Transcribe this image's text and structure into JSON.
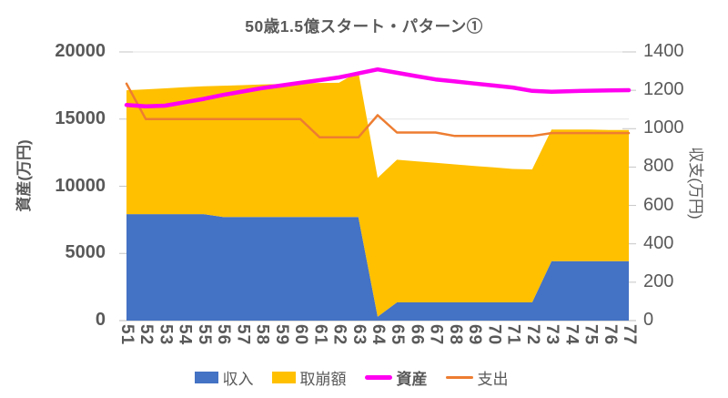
{
  "chart_data": {
    "type": "combo-stacked-area-line",
    "title": "50歳1.5億スタート・パターン①",
    "x": [
      51,
      52,
      53,
      54,
      55,
      56,
      57,
      58,
      59,
      60,
      61,
      62,
      63,
      64,
      65,
      66,
      67,
      68,
      69,
      70,
      71,
      72,
      73,
      74,
      75,
      76,
      77
    ],
    "left_axis": {
      "title": "資産(万円)",
      "min": 0,
      "max": 20000,
      "step": 5000
    },
    "right_axis": {
      "title": "収支(万円)",
      "min": 0,
      "max": 1400,
      "step": 200
    },
    "grid": {
      "show": true,
      "color": "#E3E3E3",
      "axis_color": "#C6C6C6"
    },
    "text_color": "#595959",
    "legend_position": "bottom",
    "series": [
      {
        "name": "収入",
        "type": "area",
        "stacked": true,
        "axis": "right",
        "color": "#4472C4",
        "legend_bold": false,
        "values": [
          555,
          555,
          555,
          555,
          555,
          540,
          540,
          540,
          540,
          540,
          540,
          540,
          540,
          20,
          95,
          95,
          95,
          95,
          95,
          95,
          95,
          95,
          310,
          310,
          310,
          310,
          310
        ]
      },
      {
        "name": "取崩額",
        "type": "area",
        "stacked": true,
        "axis": "right",
        "color": "#FFC000",
        "legend_bold": false,
        "values": [
          645,
          650,
          655,
          661,
          666,
          684,
          687,
          690,
          693,
          697,
          698,
          699,
          756,
          723,
          743,
          735,
          727,
          719,
          711,
          703,
          695,
          693,
          685,
          685,
          685,
          683,
          683
        ]
      },
      {
        "name": "資産",
        "type": "line",
        "axis": "left",
        "color": "#FF00F0",
        "stroke_width": 4.5,
        "legend_bold": true,
        "values": [
          16050,
          15950,
          16000,
          16250,
          16500,
          16800,
          17050,
          17300,
          17500,
          17700,
          17900,
          18100,
          18400,
          18700,
          18450,
          18200,
          17950,
          17800,
          17650,
          17500,
          17350,
          17100,
          17040,
          17080,
          17110,
          17140,
          17150
        ]
      },
      {
        "name": "支出",
        "type": "line",
        "axis": "right",
        "color": "#ED7D31",
        "stroke_width": 2.5,
        "legend_bold": false,
        "values": [
          1235,
          1050,
          1050,
          1050,
          1050,
          1050,
          1050,
          1050,
          1050,
          1050,
          955,
          955,
          955,
          1070,
          980,
          980,
          980,
          962,
          962,
          962,
          962,
          962,
          977,
          977,
          977,
          977,
          977
        ]
      }
    ]
  }
}
